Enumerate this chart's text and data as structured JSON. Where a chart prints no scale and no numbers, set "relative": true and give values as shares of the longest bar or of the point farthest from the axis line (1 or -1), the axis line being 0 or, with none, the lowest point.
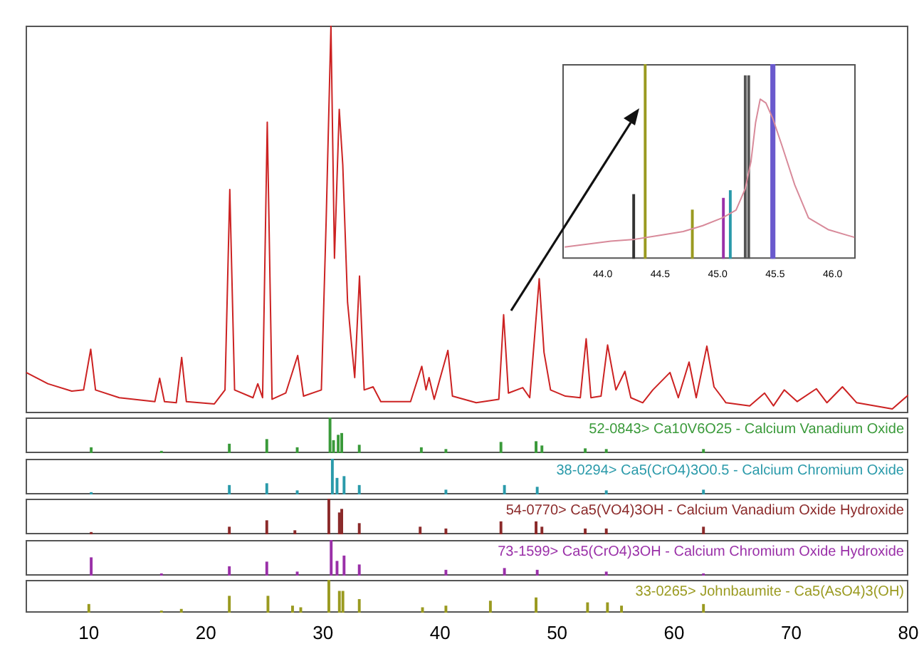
{
  "chart_data": [
    {
      "type": "line",
      "relative": true,
      "xlim": [
        4.6,
        80
      ],
      "tick_labels": false,
      "grid": false,
      "legend": false,
      "marker": "none",
      "line_style": "solid",
      "color": "#cc2222",
      "x": [
        4.65,
        6.5,
        8.54,
        9.55,
        10.16,
        10.57,
        12.6,
        15.64,
        16.05,
        16.46,
        17.47,
        17.93,
        18.33,
        20.72,
        21.63,
        22.04,
        22.45,
        24.02,
        24.43,
        24.84,
        25.24,
        25.65,
        26.82,
        27.84,
        28.34,
        29.86,
        30.27,
        30.68,
        30.98,
        31.39,
        31.69,
        32.1,
        32.71,
        33.12,
        33.52,
        34.28,
        34.94,
        37.48,
        38.44,
        38.8,
        39.06,
        39.5,
        40.67,
        41.06,
        43.09,
        45.02,
        45.43,
        45.84,
        47.06,
        47.66,
        48.47,
        48.88,
        49.44,
        50.71,
        51.98,
        52.48,
        52.89,
        53.75,
        54.31,
        55.02,
        55.79,
        56.3,
        57.31,
        58.17,
        59.64,
        60.35,
        61.27,
        61.88,
        62.79,
        63.4,
        64.42,
        66.45,
        67.72,
        68.48,
        69.4,
        70.51,
        72.14,
        73.05,
        74.37,
        75.59,
        78.63,
        80.0
      ],
      "values": [
        0.105,
        0.076,
        0.057,
        0.06,
        0.165,
        0.06,
        0.04,
        0.03,
        0.09,
        0.03,
        0.027,
        0.144,
        0.03,
        0.024,
        0.06,
        0.577,
        0.06,
        0.04,
        0.076,
        0.04,
        0.751,
        0.036,
        0.052,
        0.149,
        0.044,
        0.06,
        0.496,
        1.0,
        0.4,
        0.784,
        0.641,
        0.286,
        0.092,
        0.354,
        0.06,
        0.068,
        0.03,
        0.03,
        0.121,
        0.06,
        0.092,
        0.036,
        0.162,
        0.044,
        0.027,
        0.036,
        0.254,
        0.052,
        0.066,
        0.04,
        0.347,
        0.157,
        0.06,
        0.044,
        0.04,
        0.192,
        0.04,
        0.044,
        0.176,
        0.06,
        0.108,
        0.04,
        0.027,
        0.06,
        0.105,
        0.04,
        0.132,
        0.04,
        0.173,
        0.068,
        0.027,
        0.019,
        0.052,
        0.019,
        0.06,
        0.03,
        0.063,
        0.027,
        0.068,
        0.027,
        0.011,
        0.047
      ]
    },
    {
      "type": "line",
      "relative": true,
      "xlim": [
        43.65,
        46.2
      ],
      "xticks": [
        {
          "value": 44,
          "label": "44.0"
        },
        {
          "value": 44.5,
          "label": "44.5"
        },
        {
          "value": 45,
          "label": "45.0"
        },
        {
          "value": 45.5,
          "label": "45.5"
        },
        {
          "value": 46,
          "label": "46.0"
        }
      ],
      "tick_labels": "x",
      "grid": false,
      "legend": false,
      "marker": "none",
      "line_style": "solid",
      "series": [
        {
          "color": "#d88a9a",
          "x": [
            43.67,
            44.07,
            44.28,
            44.49,
            44.7,
            44.87,
            45.04,
            45.16,
            45.24,
            45.29,
            45.33,
            45.37,
            45.42,
            45.48,
            45.56,
            45.67,
            45.79,
            45.96,
            46.13,
            46.19
          ],
          "values": [
            0.06,
            0.09,
            0.1,
            0.12,
            0.14,
            0.17,
            0.21,
            0.25,
            0.36,
            0.5,
            0.7,
            0.82,
            0.8,
            0.72,
            0.58,
            0.38,
            0.21,
            0.15,
            0.12,
            0.11
          ]
        },
        {
          "type": "bar",
          "colors": [
            "#333333",
            "#9a9a20",
            "#9a9a20",
            "#9a30a8",
            "#2a9aaa",
            "#555555",
            "#555555",
            "#6a5acd",
            "#6a5acd"
          ],
          "x": [
            44.27,
            44.37,
            44.78,
            45.05,
            45.11,
            45.24,
            45.27,
            45.47,
            45.49
          ],
          "values": [
            0.33,
            1,
            0.25,
            0.31,
            0.35,
            0.94,
            0.94,
            1,
            1
          ]
        }
      ]
    },
    {
      "type": "bar",
      "relative": true,
      "xlim": [
        4.6,
        80
      ],
      "tick_labels": false,
      "grid": false,
      "legend": false,
      "series": [
        {
          "name": "52-0843> Ca10V6O25 - Calcium Vanadium Oxide",
          "color": "#3a9a3a",
          "x": [
            10.2,
            16.2,
            22.0,
            25.2,
            27.8,
            30.6,
            30.9,
            31.3,
            31.6,
            33.1,
            38.4,
            40.5,
            45.2,
            48.2,
            48.7,
            52.4,
            54.2,
            62.5
          ],
          "values": [
            0.15,
            0.05,
            0.25,
            0.38,
            0.15,
            1.0,
            0.35,
            0.5,
            0.55,
            0.22,
            0.15,
            0.1,
            0.3,
            0.32,
            0.2,
            0.12,
            0.1,
            0.1
          ]
        }
      ]
    },
    {
      "type": "bar",
      "relative": true,
      "xlim": [
        4.6,
        80
      ],
      "tick_labels": false,
      "grid": false,
      "legend": false,
      "series": [
        {
          "name": "38-0294> Ca5(CrO4)3O0.5 - Calcium Chromium Oxide",
          "color": "#2a9aaa",
          "x": [
            10.2,
            22.0,
            25.2,
            27.8,
            30.8,
            31.2,
            31.8,
            33.1,
            40.5,
            45.5,
            48.3,
            54.2,
            62.5
          ],
          "values": [
            0.05,
            0.25,
            0.3,
            0.1,
            1.0,
            0.45,
            0.5,
            0.25,
            0.12,
            0.25,
            0.2,
            0.1,
            0.12
          ]
        }
      ]
    },
    {
      "type": "bar",
      "relative": true,
      "xlim": [
        4.6,
        80
      ],
      "tick_labels": false,
      "grid": false,
      "legend": false,
      "series": [
        {
          "name": "54-0770> Ca5(VO4)3OH - Calcium Vanadium Oxide Hydroxide",
          "color": "#8b2a2a",
          "x": [
            10.2,
            22.0,
            25.2,
            27.6,
            30.5,
            31.4,
            31.6,
            33.1,
            38.3,
            40.5,
            45.2,
            48.2,
            48.7,
            52.4,
            54.2,
            62.5
          ],
          "values": [
            0.05,
            0.2,
            0.38,
            0.1,
            1.0,
            0.6,
            0.7,
            0.3,
            0.2,
            0.15,
            0.35,
            0.35,
            0.2,
            0.15,
            0.15,
            0.2
          ]
        }
      ]
    },
    {
      "type": "bar",
      "relative": true,
      "xlim": [
        4.6,
        80
      ],
      "tick_labels": false,
      "grid": false,
      "legend": false,
      "series": [
        {
          "name": "73-1599> Ca5(CrO4)3OH - Calcium Chromium Oxide Hydroxide",
          "color": "#9a30a8",
          "x": [
            10.2,
            16.2,
            22.0,
            25.2,
            27.8,
            30.7,
            31.2,
            31.8,
            33.1,
            40.5,
            45.5,
            48.3,
            54.2,
            62.5
          ],
          "values": [
            0.5,
            0.05,
            0.25,
            0.38,
            0.1,
            1.0,
            0.4,
            0.55,
            0.3,
            0.15,
            0.2,
            0.15,
            0.1,
            0.05
          ]
        }
      ]
    },
    {
      "type": "bar",
      "relative": true,
      "xlim": [
        4.6,
        80
      ],
      "xticks": [
        10,
        20,
        30,
        40,
        50,
        60,
        70,
        80
      ],
      "tick_labels": "x",
      "grid": false,
      "legend": false,
      "series": [
        {
          "name": "33-0265> Johnbaumite - Ca5(AsO4)3(OH)",
          "color": "#9a9a20",
          "x": [
            10.0,
            16.2,
            17.9,
            22.0,
            25.3,
            27.4,
            28.1,
            30.5,
            31.4,
            31.7,
            33.1,
            38.5,
            40.5,
            44.3,
            48.2,
            52.6,
            54.3,
            55.5,
            62.5
          ],
          "values": [
            0.25,
            0.05,
            0.1,
            0.5,
            0.5,
            0.2,
            0.15,
            1.0,
            0.65,
            0.65,
            0.4,
            0.15,
            0.2,
            0.35,
            0.45,
            0.3,
            0.3,
            0.2,
            0.25
          ]
        }
      ]
    }
  ]
}
